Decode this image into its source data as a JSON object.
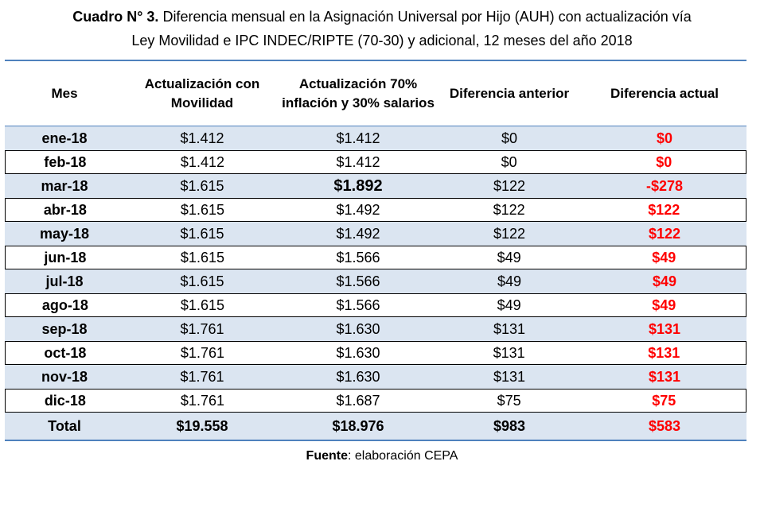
{
  "title": {
    "lead": "Cuadro N° 3.",
    "line1": " Diferencia mensual en la Asignación Universal por Hijo (AUH) con actualización vía",
    "line2": "Ley Movilidad e IPC INDEC/RIPTE (70-30) y adicional, 12 meses del año 2018"
  },
  "headers": [
    "Mes",
    "Actualización con Movilidad",
    "Actualización 70% inflación y 30% salarios",
    "Diferencia anterior",
    "Diferencia actual"
  ],
  "rows": [
    {
      "mes": "ene-18",
      "movilidad": "$1.412",
      "act7030": "$1.412",
      "dif_anterior": "$0",
      "dif_actual": "$0"
    },
    {
      "mes": "feb-18",
      "movilidad": "$1.412",
      "act7030": "$1.412",
      "dif_anterior": "$0",
      "dif_actual": "$0"
    },
    {
      "mes": "mar-18",
      "movilidad": "$1.615",
      "act7030": "$1.892",
      "dif_anterior": "$122",
      "dif_actual": "-$278"
    },
    {
      "mes": "abr-18",
      "movilidad": "$1.615",
      "act7030": "$1.492",
      "dif_anterior": "$122",
      "dif_actual": "$122"
    },
    {
      "mes": "may-18",
      "movilidad": "$1.615",
      "act7030": "$1.492",
      "dif_anterior": "$122",
      "dif_actual": "$122"
    },
    {
      "mes": "jun-18",
      "movilidad": "$1.615",
      "act7030": "$1.566",
      "dif_anterior": "$49",
      "dif_actual": "$49"
    },
    {
      "mes": "jul-18",
      "movilidad": "$1.615",
      "act7030": "$1.566",
      "dif_anterior": "$49",
      "dif_actual": "$49"
    },
    {
      "mes": "ago-18",
      "movilidad": "$1.615",
      "act7030": "$1.566",
      "dif_anterior": "$49",
      "dif_actual": "$49"
    },
    {
      "mes": "sep-18",
      "movilidad": "$1.761",
      "act7030": "$1.630",
      "dif_anterior": "$131",
      "dif_actual": "$131"
    },
    {
      "mes": "oct-18",
      "movilidad": "$1.761",
      "act7030": "$1.630",
      "dif_anterior": "$131",
      "dif_actual": "$131"
    },
    {
      "mes": "nov-18",
      "movilidad": "$1.761",
      "act7030": "$1.630",
      "dif_anterior": "$131",
      "dif_actual": "$131"
    },
    {
      "mes": "dic-18",
      "movilidad": "$1.761",
      "act7030": "$1.687",
      "dif_anterior": "$75",
      "dif_actual": "$75"
    }
  ],
  "total": {
    "mes": "Total",
    "movilidad": "$19.558",
    "act7030": "$18.976",
    "dif_anterior": "$983",
    "dif_actual": "$583"
  },
  "source": {
    "lead": "Fuente",
    "text": ": elaboración CEPA"
  },
  "colors": {
    "accent_line": "#4f81bd",
    "row_shade": "#dbe5f1",
    "negative_or_diff": "#ff0000"
  }
}
